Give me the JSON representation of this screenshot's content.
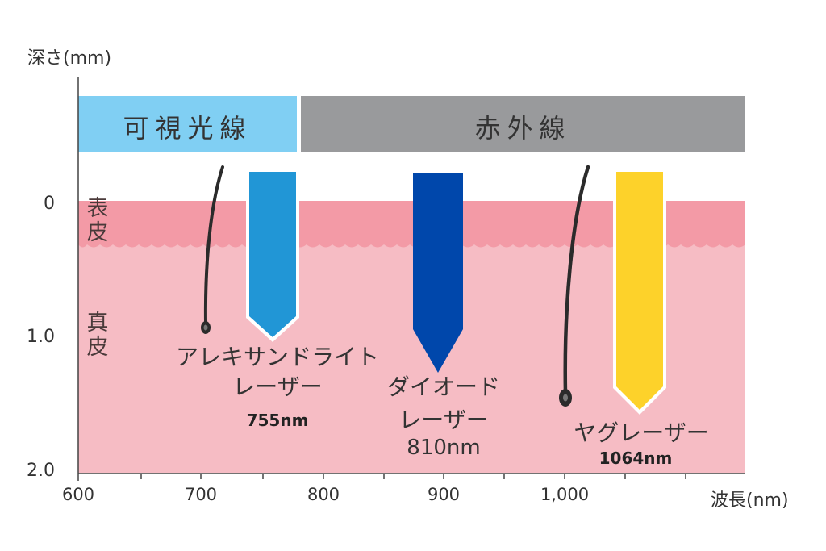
{
  "axes": {
    "y_title": "深さ(mm)",
    "x_title": "波長(nm)",
    "y_ticks": [
      "0",
      "1.0",
      "2.0"
    ],
    "x_ticks": [
      "600",
      "700",
      "800",
      "900",
      "1,000"
    ]
  },
  "bands": {
    "visible": "可視光線",
    "infrared": "赤外線"
  },
  "layers": {
    "epidermis": "表皮",
    "dermis": "真皮"
  },
  "lasers": [
    {
      "name_line1": "アレキサンドライト",
      "name_line2": "レーザー",
      "wavelength": "755nm",
      "color": "#2196d6",
      "depth_mm": 1.0
    },
    {
      "name_line1": "ダイオード",
      "name_line2": "レーザー",
      "wavelength": "810nm",
      "color": "#0047ab",
      "depth_mm": 1.25
    },
    {
      "name_line1": "ヤグレーザー",
      "name_line2": "",
      "wavelength": "1064nm",
      "color": "#fdd22a",
      "depth_mm": 1.55
    }
  ],
  "colors": {
    "visible_band": "#80cff3",
    "infrared_band": "#999a9c",
    "epidermis": "#f39aa6",
    "dermis": "#f6bcc4",
    "hair": "#2b2b2b"
  }
}
